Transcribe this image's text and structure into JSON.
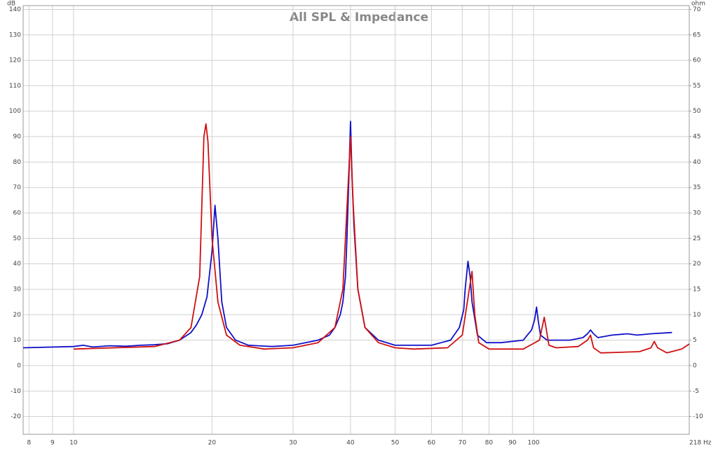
{
  "chart_data": {
    "type": "line",
    "title": "All SPL & Impedance",
    "y_label": "dB",
    "y2_label": "ohm",
    "log_x": true,
    "grid": true,
    "xlim": [
      7.77,
      218
    ],
    "xticks": [
      8,
      9,
      10,
      20,
      30,
      40,
      50,
      60,
      70,
      80,
      90,
      100,
      {
        "value": 218,
        "label": "218 Hz"
      }
    ],
    "ylim": [
      -27,
      141.5
    ],
    "yticks": [
      -20,
      -10,
      0,
      10,
      20,
      30,
      40,
      50,
      60,
      70,
      80,
      90,
      100,
      110,
      120,
      130,
      140
    ],
    "y2lim": [
      -13.5,
      70.75
    ],
    "y2ticks": [
      -10,
      -5,
      0,
      5,
      10,
      15,
      20,
      25,
      30,
      35,
      40,
      45,
      50,
      55,
      60,
      65,
      70
    ],
    "series": [
      {
        "color": "#1010c8",
        "x": [
          7.77,
          10,
          10.5,
          11,
          12,
          13,
          14,
          15,
          16,
          17,
          18,
          18.5,
          19,
          19.5,
          20,
          20.3,
          20.6,
          21,
          21.5,
          22.5,
          24,
          27,
          30,
          34,
          36,
          37,
          38,
          38.5,
          39,
          39.3,
          39.7,
          40,
          40.3,
          40.7,
          41.5,
          43,
          46,
          50,
          60,
          66,
          69,
          70.5,
          71,
          72,
          72.8,
          73.5,
          75.5,
          79,
          85,
          95,
          99,
          100.5,
          101.5,
          102.5,
          103.5,
          107,
          120,
          128,
          131,
          133,
          135,
          138,
          148,
          160,
          168,
          180,
          200
        ],
        "values": [
          7,
          7.5,
          8,
          7.3,
          7.8,
          7.6,
          8,
          8.2,
          8.6,
          10,
          13,
          16,
          20,
          27,
          45,
          63,
          50,
          25,
          15,
          10,
          8,
          7.5,
          8,
          10,
          12,
          15,
          20,
          25,
          35,
          50,
          75,
          96,
          75,
          55,
          30,
          15,
          10,
          8,
          8,
          10,
          15,
          22,
          30,
          41,
          35,
          25,
          12,
          9,
          9,
          10,
          14,
          18,
          23,
          17,
          12,
          10,
          10,
          11,
          12.5,
          14,
          12.5,
          11,
          12,
          12.5,
          12,
          12.5,
          13
        ]
      },
      {
        "color": "#d01010",
        "axis": "y2",
        "x": [
          10,
          15,
          17,
          18,
          18.8,
          19.2,
          19.4,
          19.6,
          20,
          20.6,
          21.5,
          23,
          26,
          30,
          34,
          37,
          38.5,
          39.5,
          40,
          40.5,
          41.5,
          43,
          46,
          50,
          55,
          65,
          70,
          72.5,
          73.5,
          74.5,
          76,
          80,
          95,
          103,
          105.5,
          108,
          112,
          125,
          131,
          133,
          135,
          140,
          170,
          180,
          183,
          186,
          195,
          210,
          218
        ],
        "values": [
          3.25,
          3.75,
          5,
          7.5,
          17.5,
          45,
          47.5,
          44,
          25,
          12.5,
          6,
          4,
          3.25,
          3.5,
          4.5,
          7.5,
          15,
          35,
          45,
          32.5,
          15,
          7.5,
          4.5,
          3.5,
          3.25,
          3.5,
          6,
          15,
          18.5,
          10,
          4.5,
          3.25,
          3.25,
          5,
          9.5,
          4,
          3.5,
          3.75,
          5,
          6,
          3.5,
          2.5,
          2.75,
          3.5,
          4.75,
          3.5,
          2.5,
          3.25,
          4.25
        ]
      }
    ]
  }
}
